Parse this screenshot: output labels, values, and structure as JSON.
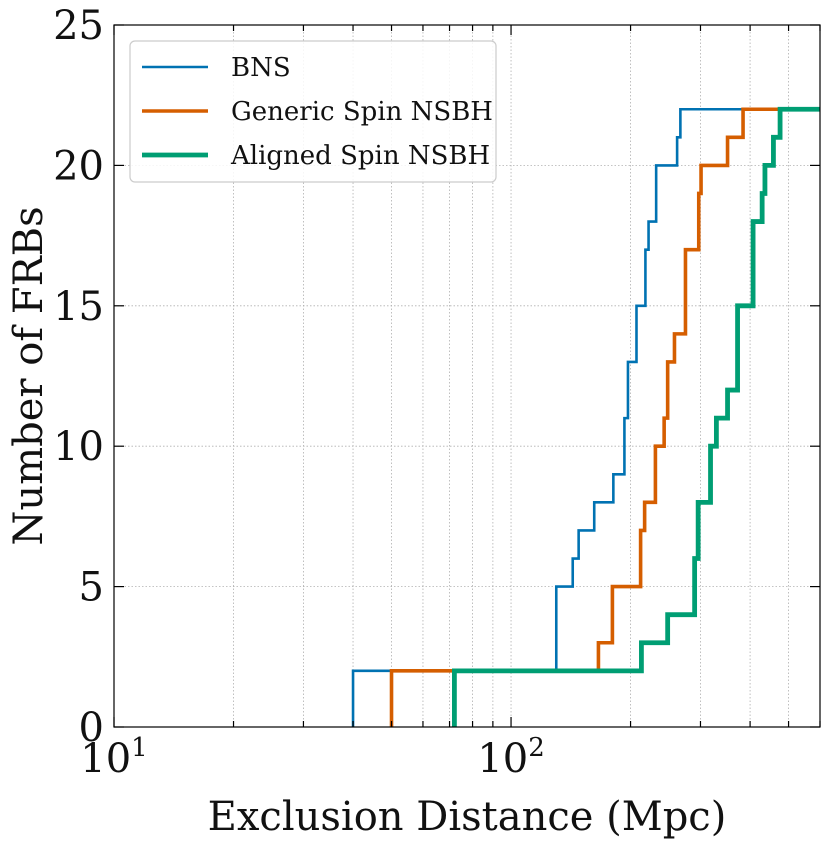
{
  "chart_data": {
    "type": "line",
    "title": "",
    "xlabel": "Exclusion Distance (Mpc)",
    "ylabel": "Number of FRBs",
    "xscale": "log",
    "xlim": [
      10,
      600
    ],
    "ylim": [
      0,
      25
    ],
    "x_ticks": [
      {
        "value": 10,
        "base": "10",
        "exp": "1"
      },
      {
        "value": 100,
        "base": "10",
        "exp": "2"
      }
    ],
    "y_ticks": [
      0,
      5,
      10,
      15,
      20,
      25
    ],
    "y_tick_labels": [
      "0",
      "5",
      "10",
      "15",
      "20",
      "25"
    ],
    "grid": true,
    "legend_position": "top-left",
    "series": [
      {
        "name": "BNS",
        "color": "#0072B2",
        "style": "step",
        "points": [
          [
            40,
            0
          ],
          [
            40,
            2
          ],
          [
            130,
            2
          ],
          [
            130,
            5
          ],
          [
            143,
            5
          ],
          [
            143,
            6
          ],
          [
            148,
            6
          ],
          [
            148,
            7
          ],
          [
            162,
            7
          ],
          [
            162,
            8
          ],
          [
            181,
            8
          ],
          [
            181,
            9
          ],
          [
            193,
            9
          ],
          [
            193,
            11
          ],
          [
            197,
            11
          ],
          [
            197,
            13
          ],
          [
            207,
            13
          ],
          [
            207,
            15
          ],
          [
            218,
            15
          ],
          [
            218,
            17
          ],
          [
            222,
            17
          ],
          [
            222,
            18
          ],
          [
            232,
            18
          ],
          [
            232,
            20
          ],
          [
            262,
            20
          ],
          [
            262,
            21
          ],
          [
            267,
            21
          ],
          [
            267,
            22
          ],
          [
            600,
            22
          ]
        ]
      },
      {
        "name": "Generic Spin NSBH",
        "color": "#D55E00",
        "style": "step",
        "points": [
          [
            50,
            0
          ],
          [
            50,
            2
          ],
          [
            166,
            2
          ],
          [
            166,
            3
          ],
          [
            180,
            3
          ],
          [
            180,
            5
          ],
          [
            212,
            5
          ],
          [
            212,
            7
          ],
          [
            217,
            7
          ],
          [
            217,
            8
          ],
          [
            231,
            8
          ],
          [
            231,
            10
          ],
          [
            243,
            10
          ],
          [
            243,
            11
          ],
          [
            248,
            11
          ],
          [
            248,
            13
          ],
          [
            258,
            13
          ],
          [
            258,
            14
          ],
          [
            275,
            14
          ],
          [
            275,
            17
          ],
          [
            297,
            17
          ],
          [
            297,
            19
          ],
          [
            301,
            19
          ],
          [
            301,
            20
          ],
          [
            351,
            20
          ],
          [
            351,
            21
          ],
          [
            384,
            21
          ],
          [
            384,
            22
          ],
          [
            600,
            22
          ]
        ]
      },
      {
        "name": "Aligned Spin NSBH",
        "color": "#009E73",
        "style": "step",
        "points": [
          [
            72,
            0
          ],
          [
            72,
            2
          ],
          [
            213,
            2
          ],
          [
            213,
            3
          ],
          [
            248,
            3
          ],
          [
            248,
            4
          ],
          [
            290,
            4
          ],
          [
            290,
            6
          ],
          [
            296,
            6
          ],
          [
            296,
            8
          ],
          [
            318,
            8
          ],
          [
            318,
            10
          ],
          [
            329,
            10
          ],
          [
            329,
            11
          ],
          [
            351,
            11
          ],
          [
            351,
            12
          ],
          [
            372,
            12
          ],
          [
            372,
            15
          ],
          [
            407,
            15
          ],
          [
            407,
            18
          ],
          [
            429,
            18
          ],
          [
            429,
            19
          ],
          [
            436,
            19
          ],
          [
            436,
            20
          ],
          [
            458,
            20
          ],
          [
            458,
            21
          ],
          [
            476,
            21
          ],
          [
            476,
            22
          ],
          [
            600,
            22
          ]
        ]
      }
    ]
  }
}
